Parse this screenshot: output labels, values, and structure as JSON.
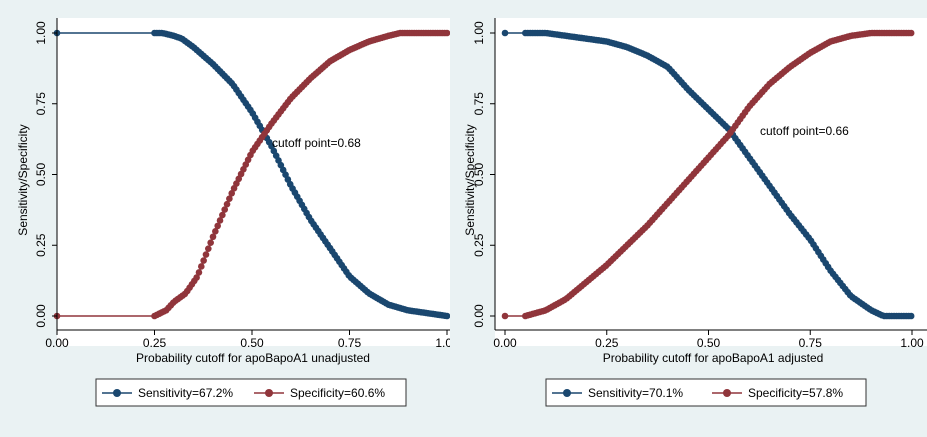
{
  "chart_data": [
    {
      "type": "line",
      "xlabel": "Probability cutoff for apoBapoA1 unadjusted",
      "ylabel": "Sensitivity/Specificity",
      "xlim": [
        0,
        1
      ],
      "ylim": [
        0,
        1
      ],
      "xticks": [
        "0.00",
        "0.25",
        "0.50",
        "0.75",
        "1.00"
      ],
      "yticks": [
        "0.00",
        "0.25",
        "0.50",
        "0.75",
        "1.00"
      ],
      "grid": false,
      "legend_position": "bottom",
      "annotation": "cutoff point=0.68",
      "series": [
        {
          "name": "Sensitivity=67.2%",
          "color": "#1a476f",
          "x": [
            0.0,
            0.25,
            0.27,
            0.3,
            0.32,
            0.35,
            0.4,
            0.45,
            0.5,
            0.55,
            0.6,
            0.65,
            0.7,
            0.75,
            0.8,
            0.85,
            0.9,
            0.95,
            1.0
          ],
          "values": [
            1.0,
            1.0,
            1.0,
            0.99,
            0.98,
            0.95,
            0.89,
            0.82,
            0.72,
            0.6,
            0.46,
            0.34,
            0.24,
            0.14,
            0.08,
            0.04,
            0.02,
            0.01,
            0.0
          ]
        },
        {
          "name": "Specificity=60.6%",
          "color": "#90353b",
          "x": [
            0.0,
            0.25,
            0.28,
            0.3,
            0.33,
            0.36,
            0.4,
            0.45,
            0.5,
            0.55,
            0.6,
            0.65,
            0.7,
            0.75,
            0.8,
            0.85,
            0.88,
            0.9,
            0.95,
            1.0
          ],
          "values": [
            0.0,
            0.0,
            0.02,
            0.05,
            0.08,
            0.14,
            0.28,
            0.44,
            0.58,
            0.68,
            0.77,
            0.84,
            0.9,
            0.94,
            0.97,
            0.99,
            1.0,
            1.0,
            1.0,
            1.0
          ]
        }
      ]
    },
    {
      "type": "line",
      "xlabel": "Probability cutoff for apoBapoA1 adjusted",
      "ylabel": "Sensitivity/Specificity",
      "xlim": [
        0,
        1
      ],
      "ylim": [
        0,
        1
      ],
      "xticks": [
        "0.00",
        "0.25",
        "0.50",
        "0.75",
        "1.00"
      ],
      "yticks": [
        "0.00",
        "0.25",
        "0.50",
        "0.75",
        "1.00"
      ],
      "grid": false,
      "legend_position": "bottom",
      "annotation": "cutoff point=0.66",
      "series": [
        {
          "name": "Sensitivity=70.1%",
          "color": "#1a476f",
          "x": [
            0.0,
            0.05,
            0.1,
            0.15,
            0.2,
            0.25,
            0.3,
            0.35,
            0.4,
            0.45,
            0.5,
            0.55,
            0.6,
            0.65,
            0.7,
            0.75,
            0.8,
            0.85,
            0.9,
            0.93,
            1.0
          ],
          "values": [
            1.0,
            1.0,
            1.0,
            0.99,
            0.98,
            0.97,
            0.95,
            0.92,
            0.88,
            0.8,
            0.73,
            0.66,
            0.56,
            0.46,
            0.36,
            0.27,
            0.16,
            0.07,
            0.02,
            0.0,
            0.0
          ]
        },
        {
          "name": "Specificity=57.8%",
          "color": "#90353b",
          "x": [
            0.0,
            0.05,
            0.1,
            0.15,
            0.2,
            0.25,
            0.3,
            0.35,
            0.4,
            0.45,
            0.5,
            0.55,
            0.6,
            0.65,
            0.7,
            0.75,
            0.8,
            0.85,
            0.9,
            0.95,
            1.0
          ],
          "values": [
            0.0,
            0.0,
            0.02,
            0.06,
            0.12,
            0.18,
            0.25,
            0.32,
            0.4,
            0.48,
            0.56,
            0.64,
            0.74,
            0.82,
            0.88,
            0.93,
            0.97,
            0.99,
            1.0,
            1.0,
            1.0
          ]
        }
      ]
    }
  ]
}
